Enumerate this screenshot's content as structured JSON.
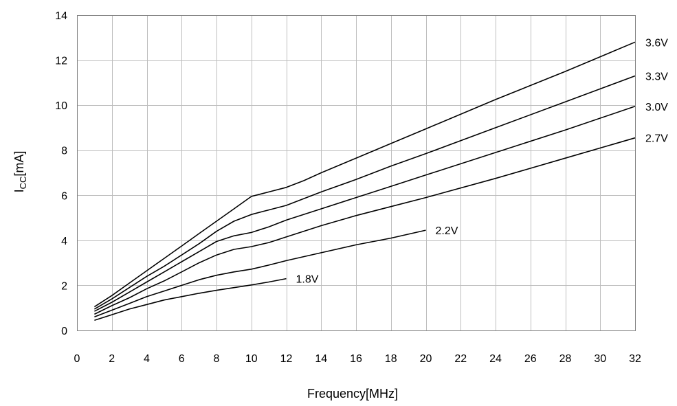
{
  "chart_data": {
    "type": "line",
    "title": "",
    "xlabel": "Frequency[MHz]",
    "ylabel": {
      "main": "I",
      "sub": "CC",
      "unit": "[mA]"
    },
    "xlim": [
      0,
      32
    ],
    "ylim": [
      0,
      14
    ],
    "xticks": [
      0,
      2,
      4,
      6,
      8,
      10,
      12,
      14,
      16,
      18,
      20,
      22,
      24,
      26,
      28,
      30,
      32
    ],
    "yticks": [
      0,
      2,
      4,
      6,
      8,
      10,
      12,
      14
    ],
    "grid": true,
    "legend": "none",
    "line_color": "#000000",
    "series": [
      {
        "name": "1.8V",
        "points": [
          [
            1,
            0.45
          ],
          [
            2,
            0.7
          ],
          [
            3,
            0.95
          ],
          [
            4,
            1.15
          ],
          [
            5,
            1.35
          ],
          [
            6,
            1.5
          ],
          [
            7,
            1.65
          ],
          [
            8,
            1.78
          ],
          [
            9,
            1.9
          ],
          [
            10,
            2.02
          ],
          [
            11,
            2.15
          ],
          [
            12,
            2.3
          ]
        ]
      },
      {
        "name": "2.2V",
        "points": [
          [
            1,
            0.6
          ],
          [
            2,
            0.9
          ],
          [
            3,
            1.2
          ],
          [
            4,
            1.5
          ],
          [
            5,
            1.75
          ],
          [
            6,
            2.0
          ],
          [
            7,
            2.25
          ],
          [
            8,
            2.45
          ],
          [
            9,
            2.6
          ],
          [
            10,
            2.72
          ],
          [
            11,
            2.9
          ],
          [
            12,
            3.1
          ],
          [
            14,
            3.45
          ],
          [
            16,
            3.8
          ],
          [
            18,
            4.1
          ],
          [
            20,
            4.45
          ]
        ]
      },
      {
        "name": "2.7V",
        "points": [
          [
            1,
            0.72
          ],
          [
            2,
            1.1
          ],
          [
            3,
            1.45
          ],
          [
            4,
            1.85
          ],
          [
            5,
            2.2
          ],
          [
            6,
            2.6
          ],
          [
            7,
            3.0
          ],
          [
            8,
            3.35
          ],
          [
            9,
            3.6
          ],
          [
            10,
            3.72
          ],
          [
            11,
            3.9
          ],
          [
            12,
            4.15
          ],
          [
            14,
            4.65
          ],
          [
            16,
            5.1
          ],
          [
            18,
            5.5
          ],
          [
            20,
            5.9
          ],
          [
            24,
            6.75
          ],
          [
            28,
            7.65
          ],
          [
            32,
            8.55
          ]
        ]
      },
      {
        "name": "3.0V",
        "points": [
          [
            1,
            0.85
          ],
          [
            2,
            1.25
          ],
          [
            3,
            1.7
          ],
          [
            4,
            2.15
          ],
          [
            5,
            2.6
          ],
          [
            6,
            3.05
          ],
          [
            7,
            3.5
          ],
          [
            8,
            3.95
          ],
          [
            9,
            4.2
          ],
          [
            10,
            4.35
          ],
          [
            11,
            4.6
          ],
          [
            12,
            4.9
          ],
          [
            14,
            5.4
          ],
          [
            16,
            5.9
          ],
          [
            18,
            6.4
          ],
          [
            20,
            6.9
          ],
          [
            24,
            7.9
          ],
          [
            28,
            8.9
          ],
          [
            32,
            9.95
          ]
        ]
      },
      {
        "name": "3.3V",
        "points": [
          [
            1,
            0.95
          ],
          [
            2,
            1.4
          ],
          [
            3,
            1.9
          ],
          [
            4,
            2.4
          ],
          [
            5,
            2.85
          ],
          [
            6,
            3.35
          ],
          [
            7,
            3.85
          ],
          [
            8,
            4.4
          ],
          [
            9,
            4.85
          ],
          [
            10,
            5.15
          ],
          [
            11,
            5.35
          ],
          [
            12,
            5.55
          ],
          [
            14,
            6.15
          ],
          [
            16,
            6.7
          ],
          [
            18,
            7.3
          ],
          [
            20,
            7.85
          ],
          [
            24,
            9.0
          ],
          [
            28,
            10.15
          ],
          [
            32,
            11.3
          ]
        ]
      },
      {
        "name": "3.6V",
        "points": [
          [
            1,
            1.05
          ],
          [
            2,
            1.55
          ],
          [
            3,
            2.1
          ],
          [
            4,
            2.65
          ],
          [
            5,
            3.2
          ],
          [
            6,
            3.75
          ],
          [
            7,
            4.3
          ],
          [
            8,
            4.85
          ],
          [
            9,
            5.4
          ],
          [
            10,
            5.95
          ],
          [
            11,
            6.15
          ],
          [
            12,
            6.35
          ],
          [
            13,
            6.65
          ],
          [
            14,
            7.0
          ],
          [
            16,
            7.65
          ],
          [
            18,
            8.3
          ],
          [
            20,
            8.95
          ],
          [
            24,
            10.25
          ],
          [
            28,
            11.5
          ],
          [
            32,
            12.8
          ]
        ]
      }
    ]
  }
}
